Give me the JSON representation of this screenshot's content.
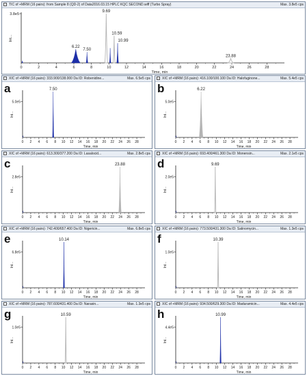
{
  "ticks_x": [
    "0",
    "2",
    "4",
    "6",
    "8",
    "10",
    "12",
    "14",
    "16",
    "18",
    "20",
    "22",
    "24",
    "26",
    "28"
  ],
  "xlabel": "Time, min",
  "ylabel_short": "Int...",
  "colors": {
    "blue": "#1c2ea8",
    "gray": "#b4b4b4",
    "axis": "#222222"
  },
  "top": {
    "title": "TIC of +MRM (16 pairs): from Sample 8 (QD-2) of Data2016.03.15 HPLC KQC SECOND.wiff (Turbo Spray)",
    "max": "Max. 3.8e5 cps",
    "ytick": "3.8e5",
    "peak_labels": [
      "6.22",
      "7.50",
      "9.69",
      "10.59",
      "10.99",
      "23.88"
    ]
  },
  "panels": [
    {
      "letter": "a",
      "title": "XIC of +MRM (16 pairs): 333.900/138.000 Da ID: Robenidine...",
      "max": "Max. 6.5e5 cps",
      "ytick": "5.0e5",
      "peak_label": "7.50"
    },
    {
      "letter": "b",
      "title": "XIC of +MRM (16 pairs): 416.100/100.100 Da ID: Halofuginone...",
      "max": "Max. 5.4e5 cps",
      "ytick": "5.0e5",
      "peak_label": "6.22"
    },
    {
      "letter": "c",
      "title": "XIC of +MRM (16 pairs): 613.300/377.200 Da ID: Lasalocid...",
      "max": "Max. 2.8e5 cps",
      "ytick": "2.8e5",
      "peak_label": "23.88"
    },
    {
      "letter": "d",
      "title": "XIC of +MRM (16 pairs): 693.400/461.300 Da ID: Monensin...",
      "max": "Max. 2.1e5 cps",
      "ytick": "2.0e5",
      "peak_label": "9.69"
    },
    {
      "letter": "e",
      "title": "XIC of +MRM (16 pairs): 742.400/657.400 Da ID: Nigericin...",
      "max": "Max. 6.8e5 cps",
      "ytick": "6.8e5",
      "peak_label": "10.14"
    },
    {
      "letter": "f",
      "title": "XIC of +MRM (16 pairs): 773.500/431.300 Da ID: Salinomycin...",
      "max": "Max. 1.3e5 cps",
      "ytick": "1.0e5",
      "peak_label": "10.39"
    },
    {
      "letter": "g",
      "title": "XIC of +MRM (16 pairs): 787.600/431.400 Da ID: Narasin...",
      "max": "Max. 1.3e5 cps",
      "ytick": "1.0e5",
      "peak_label": "10.59"
    },
    {
      "letter": "h",
      "title": "XIC of +MRM (16 pairs): 934.500/629.300 Da ID: Maduramicin...",
      "max": "Max. 4.4e5 cps",
      "ytick": "4.4e5",
      "peak_label": "10.99"
    }
  ],
  "chart_data": [
    {
      "type": "line",
      "name": "TIC",
      "xlabel": "Time, min",
      "xlim": [
        0,
        30
      ],
      "y_max_label": "Max. 3.8e5 cps",
      "peaks": [
        {
          "x": 6.22,
          "y_rel": 0.28,
          "width": 0.5,
          "color": "#1c2ea8",
          "filled": true
        },
        {
          "x": 7.5,
          "y_rel": 0.22,
          "width": 0.1,
          "color": "#1c2ea8",
          "filled": true
        },
        {
          "x": 9.69,
          "y_rel": 1.0,
          "width": 0.15,
          "color": "#b4b4b4",
          "filled": false
        },
        {
          "x": 10.14,
          "y_rel": 0.3,
          "width": 0.08,
          "color": "#1c2ea8",
          "filled": true
        },
        {
          "x": 10.59,
          "y_rel": 0.55,
          "width": 0.1,
          "color": "#b4b4b4",
          "filled": false
        },
        {
          "x": 10.99,
          "y_rel": 0.4,
          "width": 0.1,
          "color": "#1c2ea8",
          "filled": true
        },
        {
          "x": 23.88,
          "y_rel": 0.09,
          "width": 0.3,
          "color": "#b4b4b4",
          "filled": false
        }
      ]
    },
    {
      "type": "line",
      "name": "a",
      "xlim": [
        0,
        30
      ],
      "peaks": [
        {
          "x": 7.5,
          "y_rel": 1.0,
          "width": 0.1,
          "color": "#1c2ea8",
          "filled": true
        }
      ]
    },
    {
      "type": "line",
      "name": "b",
      "xlim": [
        0,
        30
      ],
      "peaks": [
        {
          "x": 6.22,
          "y_rel": 1.0,
          "width": 0.45,
          "color": "#b4b4b4",
          "filled": true
        }
      ]
    },
    {
      "type": "line",
      "name": "c",
      "xlim": [
        0,
        30
      ],
      "peaks": [
        {
          "x": 23.88,
          "y_rel": 1.0,
          "width": 0.3,
          "color": "#b4b4b4",
          "filled": true
        }
      ]
    },
    {
      "type": "line",
      "name": "d",
      "xlim": [
        0,
        30
      ],
      "peaks": [
        {
          "x": 9.69,
          "y_rel": 1.0,
          "width": 0.12,
          "color": "#b4b4b4",
          "filled": false
        }
      ]
    },
    {
      "type": "line",
      "name": "e",
      "xlim": [
        0,
        30
      ],
      "peaks": [
        {
          "x": 10.14,
          "y_rel": 1.0,
          "width": 0.08,
          "color": "#1c2ea8",
          "filled": true
        }
      ]
    },
    {
      "type": "line",
      "name": "f",
      "xlim": [
        0,
        30
      ],
      "peaks": [
        {
          "x": 10.39,
          "y_rel": 1.0,
          "width": 0.1,
          "color": "#b4b4b4",
          "filled": false
        }
      ]
    },
    {
      "type": "line",
      "name": "g",
      "xlim": [
        0,
        30
      ],
      "peaks": [
        {
          "x": 10.59,
          "y_rel": 1.0,
          "width": 0.1,
          "color": "#b4b4b4",
          "filled": false
        }
      ]
    },
    {
      "type": "line",
      "name": "h",
      "xlim": [
        0,
        30
      ],
      "peaks": [
        {
          "x": 10.99,
          "y_rel": 1.0,
          "width": 0.1,
          "color": "#1c2ea8",
          "filled": true
        }
      ]
    }
  ]
}
